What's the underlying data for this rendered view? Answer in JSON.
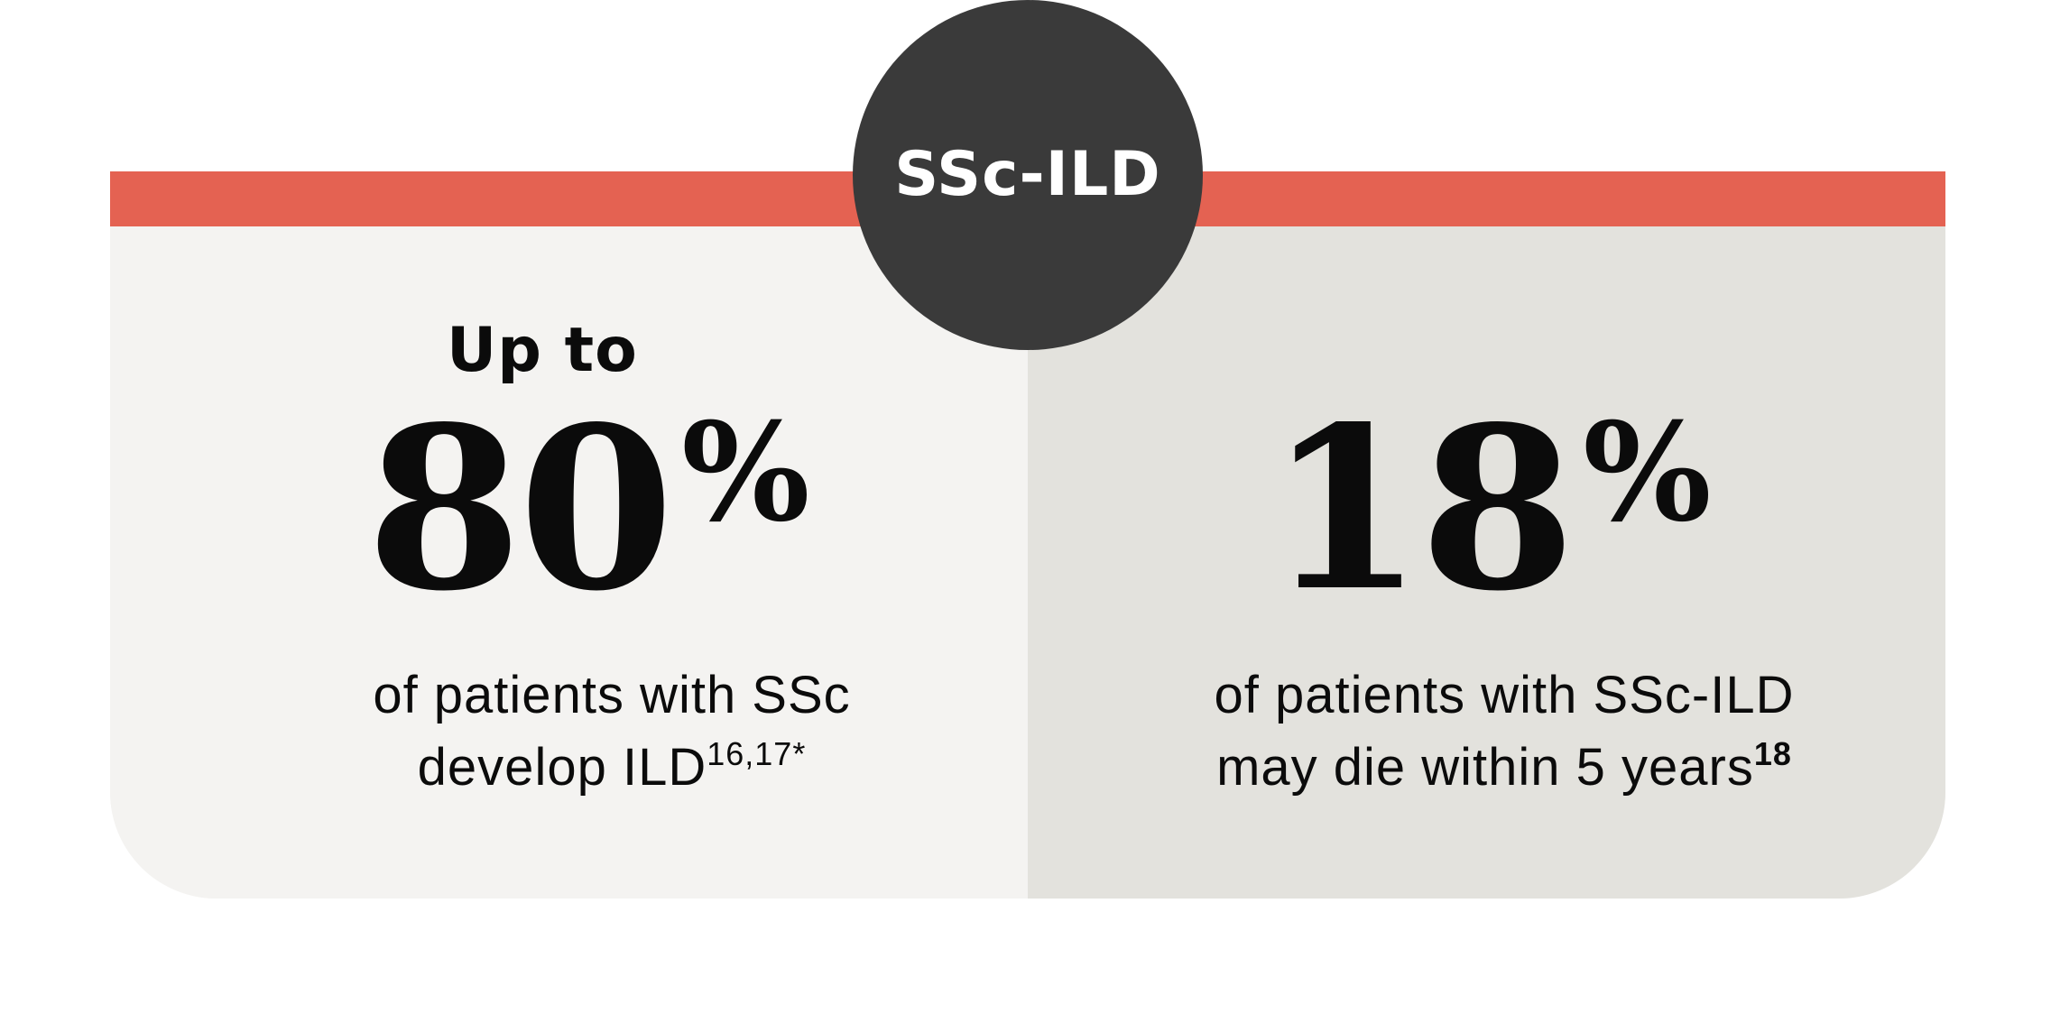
{
  "header": {
    "title": "SSc-ILD"
  },
  "colors": {
    "band": "#e46252",
    "circle": "#3a3a3a",
    "left_panel": "#f4f3f1",
    "right_panel": "#e3e2dd",
    "text": "#0b0b0b"
  },
  "stats": [
    {
      "lead_in": "Up to",
      "value": "80",
      "unit": "%",
      "caption_line1": "of patients with SSc",
      "caption_line2": "develop ILD",
      "superscript": "16,17",
      "footnote_mark": "*"
    },
    {
      "value": "18",
      "unit": "%",
      "caption_line1": "of patients with SSc-ILD",
      "caption_line2": "may die within 5 years",
      "superscript": "18"
    }
  ]
}
